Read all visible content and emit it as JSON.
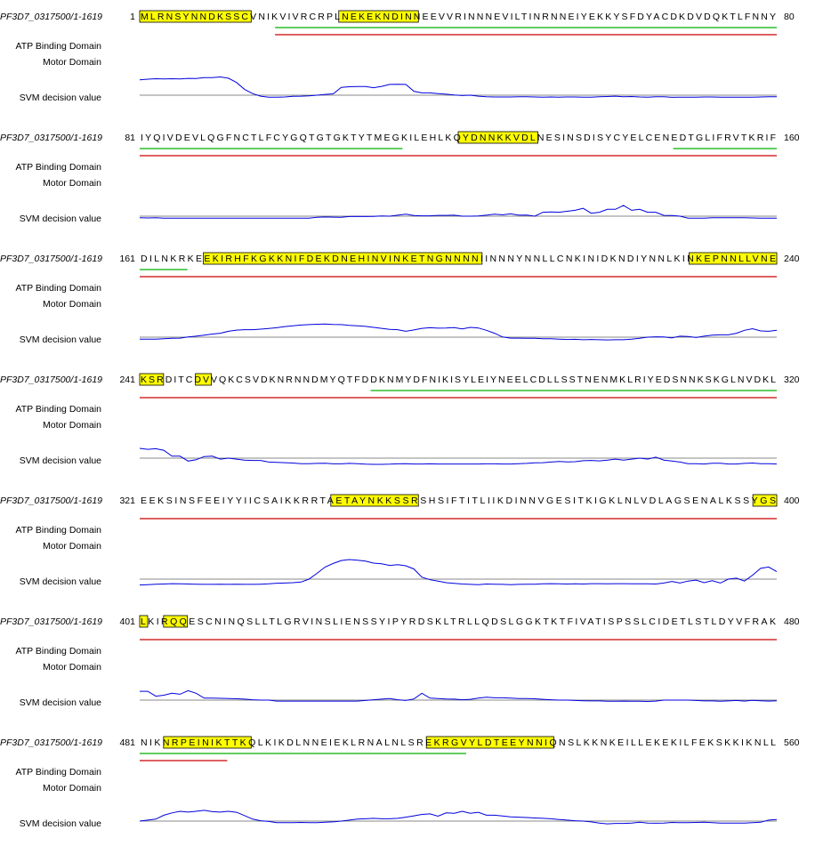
{
  "track_labels": {
    "atp": "ATP Binding Domain",
    "motor": "Motor Domain",
    "svm": "SVM decision value"
  },
  "colors": {
    "highlight": "#ffff00",
    "atp_line": "#00b000",
    "motor_line": "#cc0000",
    "svm_line": "#0000dd",
    "baseline": "#606060"
  },
  "blocks": [
    {
      "name": "PF3D7_0317500/1-1619",
      "start": "1",
      "end": "80",
      "sequence": "MLRNSYNNDKSSCVNIKVIVRCRPLNEKEKNDINNEEVVRINNNEVILTINRNNEIYEKKYSFDYACDKDVDQKTLFNNY",
      "highlights": [
        [
          0,
          14
        ],
        [
          25,
          35
        ]
      ],
      "atp": [
        [
          17,
          80
        ]
      ],
      "motor": [
        [
          17,
          80
        ]
      ],
      "svm": [
        0.78,
        0.82,
        0.84,
        0.83,
        0.84,
        0.83,
        0.86,
        0.85,
        0.9,
        0.9,
        0.93,
        0.87,
        0.65,
        0.3,
        0.08,
        -0.05,
        -0.1,
        -0.1,
        -0.09,
        -0.06,
        -0.05,
        -0.03,
        0.0,
        0.04,
        0.07,
        0.4,
        0.43,
        0.44,
        0.44,
        0.38,
        0.45,
        0.55,
        0.56,
        0.55,
        0.2,
        0.12,
        0.12,
        0.08,
        0.05,
        0.01,
        -0.02,
        0.0,
        -0.05,
        -0.08,
        -0.09,
        -0.09,
        -0.09,
        -0.08,
        -0.08,
        -0.09,
        -0.1,
        -0.09,
        -0.1,
        -0.09,
        -0.09,
        -0.1,
        -0.1,
        -0.08,
        -0.07,
        -0.05,
        -0.08,
        -0.07,
        -0.09,
        -0.1,
        -0.08,
        -0.08,
        -0.11,
        -0.1,
        -0.1,
        -0.1,
        -0.09,
        -0.09,
        -0.1,
        -0.1,
        -0.1,
        -0.1,
        -0.1,
        -0.09,
        -0.08,
        -0.08
      ]
    },
    {
      "name": "PF3D7_0317500/1-1619",
      "start": "81",
      "end": "160",
      "sequence": "IYQIVDEVLQGFNCTLFCYGQTGTGKTYTMEGKILEHLKQYDNNKKVDLNESINSDISYCYELCENEDTGLIFRVTKRIF",
      "highlights": [
        [
          40,
          50
        ]
      ],
      "atp": [
        [
          0,
          33
        ],
        [
          67,
          80
        ]
      ],
      "motor": [
        [
          0,
          80
        ]
      ],
      "svm": [
        -0.08,
        -0.09,
        -0.08,
        -0.1,
        -0.1,
        -0.1,
        -0.1,
        -0.1,
        -0.1,
        -0.1,
        -0.1,
        -0.1,
        -0.1,
        -0.1,
        -0.1,
        -0.1,
        -0.1,
        -0.1,
        -0.1,
        -0.1,
        -0.1,
        -0.1,
        -0.06,
        -0.04,
        -0.05,
        -0.06,
        -0.02,
        -0.01,
        -0.02,
        -0.01,
        0.01,
        0.0,
        0.05,
        0.1,
        0.03,
        0.02,
        0.02,
        0.04,
        0.04,
        0.05,
        0.0,
        0.0,
        0.01,
        0.05,
        0.1,
        0.07,
        0.12,
        0.05,
        0.06,
        0.0,
        0.2,
        0.22,
        0.2,
        0.25,
        0.3,
        0.4,
        0.15,
        0.2,
        0.35,
        0.35,
        0.55,
        0.3,
        0.35,
        0.2,
        0.2,
        0.04,
        0.03,
        0.0,
        -0.1,
        -0.1,
        -0.1,
        -0.08,
        -0.08,
        -0.08,
        -0.08,
        -0.08,
        -0.09,
        -0.1,
        -0.1,
        -0.1
      ]
    },
    {
      "name": "PF3D7_0317500/1-1619",
      "start": "161",
      "end": "240",
      "sequence": "DILNKRKEEKIRHFKGKKNIFDEKDNEHINVINKETNGNNNNIINNNYNNLLCNKINIDKNDIYNNLKINKEPNNLLVNE",
      "highlights": [
        [
          8,
          43
        ],
        [
          69,
          80
        ]
      ],
      "atp": [
        [
          0,
          6
        ]
      ],
      "motor": [
        [
          0,
          80
        ]
      ],
      "svm": [
        -0.1,
        -0.1,
        -0.1,
        -0.08,
        -0.06,
        -0.05,
        0.01,
        0.05,
        0.1,
        0.16,
        0.2,
        0.3,
        0.36,
        0.38,
        0.38,
        0.41,
        0.44,
        0.48,
        0.54,
        0.58,
        0.62,
        0.64,
        0.66,
        0.67,
        0.65,
        0.64,
        0.6,
        0.58,
        0.55,
        0.5,
        0.45,
        0.4,
        0.38,
        0.3,
        0.37,
        0.45,
        0.48,
        0.46,
        0.47,
        0.49,
        0.42,
        0.5,
        0.47,
        0.35,
        0.2,
        0.01,
        -0.05,
        -0.05,
        -0.06,
        -0.06,
        -0.08,
        -0.08,
        -0.1,
        -0.12,
        -0.11,
        -0.13,
        -0.12,
        -0.13,
        -0.14,
        -0.13,
        -0.13,
        -0.1,
        -0.06,
        0.0,
        0.02,
        0.01,
        -0.04,
        0.05,
        0.03,
        -0.02,
        0.05,
        0.1,
        0.12,
        0.12,
        0.2,
        0.35,
        0.43,
        0.32,
        0.3,
        0.35
      ]
    },
    {
      "name": "PF3D7_0317500/1-1619",
      "start": "241",
      "end": "320",
      "sequence": "KSRDITCDVVQKCSVDKNRNNDMYQTFDDKNMYDFNIKISYLEIYNEELCDLLSSTNENMKLRIYEDSNNKSKGLNVDKL",
      "highlights": [
        [
          0,
          3
        ],
        [
          7,
          9
        ]
      ],
      "atp": [
        [
          29,
          80
        ]
      ],
      "motor": [
        [
          0,
          80
        ]
      ],
      "svm": [
        0.5,
        0.45,
        0.48,
        0.4,
        0.1,
        0.1,
        -0.15,
        -0.08,
        0.08,
        0.1,
        -0.05,
        0.0,
        -0.05,
        -0.1,
        -0.12,
        -0.12,
        -0.2,
        -0.22,
        -0.23,
        -0.25,
        -0.28,
        -0.28,
        -0.27,
        -0.26,
        -0.29,
        -0.29,
        -0.27,
        -0.28,
        -0.31,
        -0.32,
        -0.32,
        -0.31,
        -0.29,
        -0.28,
        -0.3,
        -0.3,
        -0.29,
        -0.3,
        -0.3,
        -0.3,
        -0.3,
        -0.3,
        -0.3,
        -0.29,
        -0.29,
        -0.3,
        -0.3,
        -0.28,
        -0.27,
        -0.24,
        -0.23,
        -0.2,
        -0.17,
        -0.19,
        -0.18,
        -0.13,
        -0.12,
        -0.14,
        -0.1,
        -0.05,
        -0.1,
        -0.05,
        0.0,
        -0.05,
        0.05,
        -0.1,
        -0.15,
        -0.2,
        -0.28,
        -0.28,
        -0.3,
        -0.26,
        -0.26,
        -0.3,
        -0.3,
        -0.27,
        -0.25,
        -0.28,
        -0.28,
        -0.3
      ]
    },
    {
      "name": "PF3D7_0317500/1-1619",
      "start": "321",
      "end": "400",
      "sequence": "EEKSINSFEEIYYIICSAIKKRRTAETAYNKKSSRSHSIFTITLIIKDINNVGESITKIGKLNLVDLAGSENALKSSYGS",
      "highlights": [
        [
          24,
          35
        ],
        [
          77,
          80
        ]
      ],
      "atp": [],
      "motor": [
        [
          0,
          80
        ]
      ],
      "svm": [
        -0.3,
        -0.28,
        -0.26,
        -0.25,
        -0.23,
        -0.24,
        -0.25,
        -0.26,
        -0.27,
        -0.27,
        -0.26,
        -0.27,
        -0.26,
        -0.27,
        -0.27,
        -0.26,
        -0.24,
        -0.21,
        -0.2,
        -0.18,
        -0.15,
        0.0,
        0.3,
        0.62,
        0.8,
        0.95,
        1.0,
        0.97,
        0.92,
        0.82,
        0.78,
        0.7,
        0.74,
        0.68,
        0.52,
        0.1,
        -0.03,
        -0.1,
        -0.18,
        -0.22,
        -0.25,
        -0.27,
        -0.28,
        -0.25,
        -0.26,
        -0.27,
        -0.28,
        -0.27,
        -0.26,
        -0.26,
        -0.24,
        -0.23,
        -0.24,
        -0.25,
        -0.24,
        -0.25,
        -0.23,
        -0.23,
        -0.24,
        -0.23,
        -0.23,
        -0.24,
        -0.24,
        -0.24,
        -0.25,
        -0.2,
        -0.12,
        -0.2,
        -0.1,
        -0.05,
        -0.18,
        -0.08,
        -0.2,
        0.0,
        0.05,
        -0.1,
        0.2,
        0.55,
        0.62,
        0.38
      ]
    },
    {
      "name": "PF3D7_0317500/1-1619",
      "start": "401",
      "end": "480",
      "sequence": "LKIRQQESCNINQSLLTLGRVINSLIENSSYIPYRDSKLTRLLQDSLGGKTKTFIVATISPSSLCIDETLSTLDYVFRAK",
      "highlights": [
        [
          0,
          1
        ],
        [
          3,
          6
        ]
      ],
      "atp": [],
      "motor": [
        [
          0,
          80
        ]
      ],
      "svm": [
        0.45,
        0.45,
        0.2,
        0.25,
        0.35,
        0.3,
        0.48,
        0.35,
        0.1,
        0.1,
        0.09,
        0.08,
        0.07,
        0.05,
        0.02,
        0.0,
        0.0,
        -0.05,
        -0.05,
        -0.05,
        -0.05,
        -0.05,
        -0.05,
        -0.05,
        -0.05,
        -0.05,
        -0.05,
        -0.05,
        -0.02,
        0.02,
        0.05,
        0.08,
        0.02,
        -0.02,
        0.06,
        0.35,
        0.1,
        0.08,
        0.06,
        0.05,
        0.02,
        0.04,
        0.1,
        0.15,
        0.12,
        0.12,
        0.1,
        0.08,
        0.08,
        0.07,
        0.04,
        0.02,
        0.0,
        0.0,
        -0.02,
        -0.03,
        -0.04,
        -0.04,
        -0.06,
        -0.06,
        -0.05,
        -0.06,
        -0.06,
        -0.07,
        -0.05,
        0.0,
        0.0,
        0.0,
        0.0,
        -0.02,
        -0.04,
        -0.04,
        -0.06,
        -0.04,
        -0.02,
        -0.05,
        -0.01,
        -0.03,
        -0.05,
        -0.03
      ]
    },
    {
      "name": "PF3D7_0317500/1-1619",
      "start": "481",
      "end": "560",
      "sequence": "NIKNRPEINIKTTKQLKIKDLNNEIEKLRNALNLSREKRGVYLDTEEYNNIQNSLKKNKEILLEKEKILFEKSKKIKNLL",
      "highlights": [
        [
          3,
          14
        ],
        [
          36,
          52
        ]
      ],
      "atp": [
        [
          0,
          41
        ]
      ],
      "motor": [
        [
          0,
          11
        ]
      ],
      "svm": [
        0.0,
        0.05,
        0.1,
        0.3,
        0.42,
        0.5,
        0.46,
        0.5,
        0.55,
        0.48,
        0.46,
        0.5,
        0.45,
        0.28,
        0.1,
        0.02,
        -0.02,
        -0.08,
        -0.08,
        -0.08,
        -0.07,
        -0.08,
        -0.08,
        -0.06,
        -0.04,
        0.0,
        0.05,
        0.1,
        0.12,
        0.14,
        0.12,
        0.12,
        0.14,
        0.2,
        0.27,
        0.34,
        0.37,
        0.25,
        0.42,
        0.4,
        0.5,
        0.4,
        0.45,
        0.3,
        0.3,
        0.26,
        0.22,
        0.2,
        0.18,
        0.16,
        0.14,
        0.12,
        0.08,
        0.05,
        0.02,
        0.0,
        -0.04,
        -0.1,
        -0.14,
        -0.12,
        -0.12,
        -0.1,
        -0.06,
        -0.1,
        -0.11,
        -0.1,
        -0.07,
        -0.08,
        -0.08,
        -0.07,
        -0.06,
        -0.08,
        -0.1,
        -0.1,
        -0.1,
        -0.1,
        -0.08,
        -0.06,
        0.05,
        0.08
      ]
    }
  ]
}
